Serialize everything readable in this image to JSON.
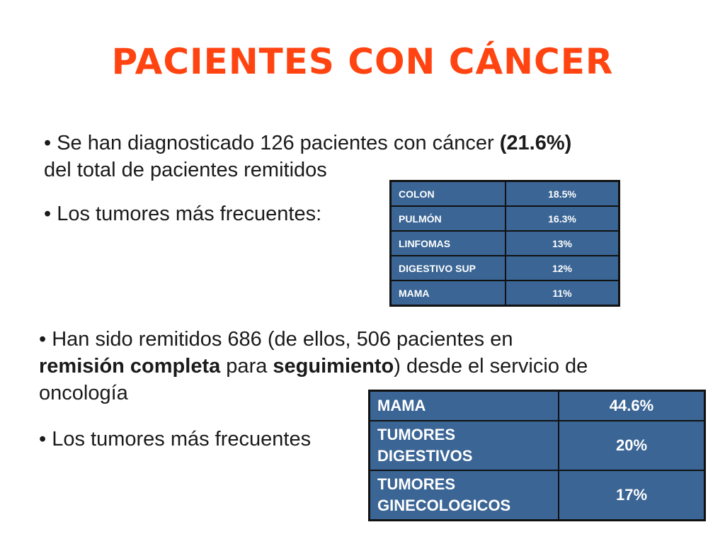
{
  "title": "PACIENTES CON CÁNCER",
  "section1": {
    "bullet1": {
      "prefix": "• Se han diagnosticado 126 pacientes con cáncer ",
      "bold": "(21.6%)",
      "line2": "del total de pacientes remitidos"
    },
    "bullet2": "• Los tumores más frecuentes:",
    "table": [
      {
        "label": "COLON",
        "value": "18.5%"
      },
      {
        "label": "PULMÓN",
        "value": "16.3%"
      },
      {
        "label": "LINFOMAS",
        "value": "13%"
      },
      {
        "label": "DIGESTIVO SUP",
        "value": "12%"
      },
      {
        "label": "MAMA",
        "value": "11%"
      }
    ]
  },
  "section2": {
    "bullet1": {
      "line1": "• Han sido remitidos 686 (de ellos, 506 pacientes en",
      "bold1": "remisión completa",
      "mid": " para ",
      "bold2": "seguimiento",
      "rest": ") desde el servicio de",
      "line3": "oncología"
    },
    "bullet2": "• Los tumores más frecuentes",
    "table": [
      {
        "label_line1": "MAMA",
        "label_line2": "",
        "value": "44.6%"
      },
      {
        "label_line1": "TUMORES",
        "label_line2": "DIGESTIVOS",
        "value": "20%"
      },
      {
        "label_line1": "TUMORES",
        "label_line2": "GINECOLOGICOS",
        "value": "17%"
      }
    ]
  },
  "colors": {
    "title": "#ff4411",
    "table_fill": "#3a6595",
    "table_border": "#111111"
  }
}
